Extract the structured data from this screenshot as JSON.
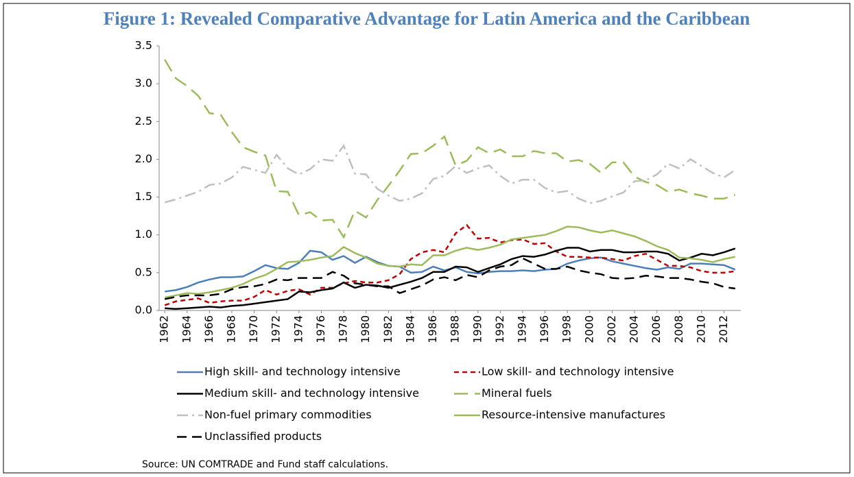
{
  "chart_data": {
    "type": "line",
    "title": "Figure 1: Revealed Comparative Advantage for Latin America and the Caribbean",
    "source": "Source: UN COMTRADE and Fund staff calculations.",
    "x": [
      1962,
      1963,
      1964,
      1965,
      1966,
      1967,
      1968,
      1969,
      1970,
      1971,
      1972,
      1973,
      1974,
      1975,
      1976,
      1977,
      1978,
      1979,
      1980,
      1981,
      1982,
      1983,
      1984,
      1985,
      1986,
      1987,
      1988,
      1989,
      1990,
      1991,
      1992,
      1993,
      1994,
      1995,
      1996,
      1997,
      1998,
      1999,
      2000,
      2001,
      2002,
      2003,
      2004,
      2005,
      2006,
      2007,
      2008,
      2009,
      2010,
      2011,
      2012,
      2013
    ],
    "xlim": [
      1961.5,
      2013.5
    ],
    "xticks": [
      1962,
      1964,
      1966,
      1968,
      1970,
      1972,
      1974,
      1976,
      1978,
      1980,
      1982,
      1984,
      1986,
      1988,
      1990,
      1992,
      1994,
      1996,
      1998,
      2000,
      2002,
      2004,
      2006,
      2008,
      2010,
      2012
    ],
    "ylim": [
      0,
      3.5
    ],
    "yticks": [
      {
        "value": 0,
        "label": "0.0"
      },
      0.5,
      {
        "value": 1,
        "label": "1.0"
      },
      1.5,
      {
        "value": 2,
        "label": "2.0"
      },
      2.5,
      {
        "value": 3,
        "label": "3.0"
      },
      3.5
    ],
    "series": [
      {
        "name": "High skill- and technology intensive",
        "color": "#4a7ebb",
        "dash": "solid",
        "values": [
          0.25,
          0.27,
          0.31,
          0.37,
          0.41,
          0.44,
          0.44,
          0.45,
          0.52,
          0.6,
          0.56,
          0.55,
          0.63,
          0.79,
          0.77,
          0.67,
          0.72,
          0.63,
          0.71,
          0.64,
          0.59,
          0.58,
          0.5,
          0.51,
          0.58,
          0.53,
          0.57,
          0.51,
          0.49,
          0.51,
          0.52,
          0.52,
          0.53,
          0.52,
          0.54,
          0.55,
          0.62,
          0.66,
          0.69,
          0.7,
          0.65,
          0.62,
          0.59,
          0.56,
          0.54,
          0.57,
          0.55,
          0.62,
          0.62,
          0.61,
          0.6,
          0.54
        ]
      },
      {
        "name": "Low skill- and technology intensive",
        "color": "#c00000",
        "dash": "dashed",
        "values": [
          0.07,
          0.12,
          0.14,
          0.16,
          0.1,
          0.12,
          0.13,
          0.13,
          0.18,
          0.27,
          0.21,
          0.26,
          0.28,
          0.21,
          0.3,
          0.3,
          0.36,
          0.39,
          0.37,
          0.37,
          0.4,
          0.48,
          0.68,
          0.77,
          0.8,
          0.77,
          1.02,
          1.13,
          0.95,
          0.96,
          0.9,
          0.93,
          0.94,
          0.88,
          0.89,
          0.78,
          0.71,
          0.71,
          0.7,
          0.7,
          0.68,
          0.66,
          0.72,
          0.75,
          0.67,
          0.59,
          0.59,
          0.57,
          0.52,
          0.5,
          0.5,
          0.52
        ]
      },
      {
        "name": "Medium skill- and technology intensive",
        "color": "#000000",
        "dash": "solid",
        "values": [
          0.03,
          0.02,
          0.03,
          0.04,
          0.05,
          0.04,
          0.06,
          0.07,
          0.09,
          0.11,
          0.13,
          0.15,
          0.25,
          0.24,
          0.27,
          0.29,
          0.37,
          0.3,
          0.34,
          0.33,
          0.3,
          0.34,
          0.38,
          0.43,
          0.51,
          0.51,
          0.58,
          0.57,
          0.51,
          0.56,
          0.61,
          0.68,
          0.72,
          0.71,
          0.74,
          0.79,
          0.83,
          0.83,
          0.78,
          0.8,
          0.8,
          0.77,
          0.77,
          0.78,
          0.78,
          0.75,
          0.66,
          0.7,
          0.75,
          0.73,
          0.77,
          0.82
        ]
      },
      {
        "name": "Mineral fuels",
        "color": "#9bbb59",
        "dash": "long-dash",
        "values": [
          3.32,
          3.07,
          2.97,
          2.84,
          2.61,
          2.59,
          2.36,
          2.16,
          2.1,
          2.05,
          1.58,
          1.57,
          1.26,
          1.3,
          1.19,
          1.2,
          0.97,
          1.32,
          1.23,
          1.46,
          1.65,
          1.85,
          2.07,
          2.08,
          2.18,
          2.3,
          1.92,
          1.98,
          2.16,
          2.08,
          2.13,
          2.04,
          2.04,
          2.11,
          2.08,
          2.08,
          1.97,
          1.99,
          1.94,
          1.82,
          1.96,
          1.96,
          1.77,
          1.7,
          1.66,
          1.57,
          1.6,
          1.55,
          1.52,
          1.48,
          1.48,
          1.53
        ]
      },
      {
        "name": "Non-fuel primary commodities",
        "color": "#bfbfbf",
        "dash": "dash-dot",
        "values": [
          1.43,
          1.47,
          1.52,
          1.57,
          1.66,
          1.68,
          1.76,
          1.9,
          1.86,
          1.82,
          2.06,
          1.88,
          1.8,
          1.87,
          2.0,
          1.98,
          2.18,
          1.81,
          1.8,
          1.61,
          1.52,
          1.45,
          1.48,
          1.55,
          1.74,
          1.78,
          1.91,
          1.82,
          1.88,
          1.92,
          1.78,
          1.68,
          1.73,
          1.73,
          1.62,
          1.56,
          1.58,
          1.48,
          1.42,
          1.45,
          1.51,
          1.56,
          1.71,
          1.72,
          1.8,
          1.94,
          1.88,
          2.0,
          1.91,
          1.82,
          1.76,
          1.86
        ]
      },
      {
        "name": "Resource-intensive manufactures",
        "color": "#9bbb59",
        "dash": "solid",
        "values": [
          0.17,
          0.2,
          0.23,
          0.22,
          0.24,
          0.27,
          0.3,
          0.35,
          0.42,
          0.47,
          0.55,
          0.64,
          0.65,
          0.67,
          0.7,
          0.72,
          0.84,
          0.76,
          0.7,
          0.62,
          0.59,
          0.58,
          0.61,
          0.6,
          0.73,
          0.73,
          0.79,
          0.83,
          0.8,
          0.83,
          0.87,
          0.94,
          0.96,
          0.98,
          1.0,
          1.05,
          1.11,
          1.1,
          1.06,
          1.03,
          1.06,
          1.02,
          0.98,
          0.92,
          0.85,
          0.8,
          0.7,
          0.69,
          0.67,
          0.64,
          0.68,
          0.71
        ]
      },
      {
        "name": "Unclassified products",
        "color": "#000000",
        "dash": "dashed-wide",
        "values": [
          0.15,
          0.18,
          0.2,
          0.2,
          0.2,
          0.22,
          0.28,
          0.31,
          0.32,
          0.35,
          0.41,
          0.4,
          0.43,
          0.43,
          0.43,
          0.51,
          0.46,
          0.36,
          0.34,
          0.32,
          0.32,
          0.23,
          0.28,
          0.33,
          0.41,
          0.44,
          0.4,
          0.47,
          0.44,
          0.53,
          0.58,
          0.6,
          0.69,
          0.62,
          0.55,
          0.55,
          0.58,
          0.53,
          0.5,
          0.48,
          0.43,
          0.42,
          0.43,
          0.46,
          0.45,
          0.43,
          0.43,
          0.41,
          0.38,
          0.36,
          0.31,
          0.29
        ]
      }
    ]
  }
}
